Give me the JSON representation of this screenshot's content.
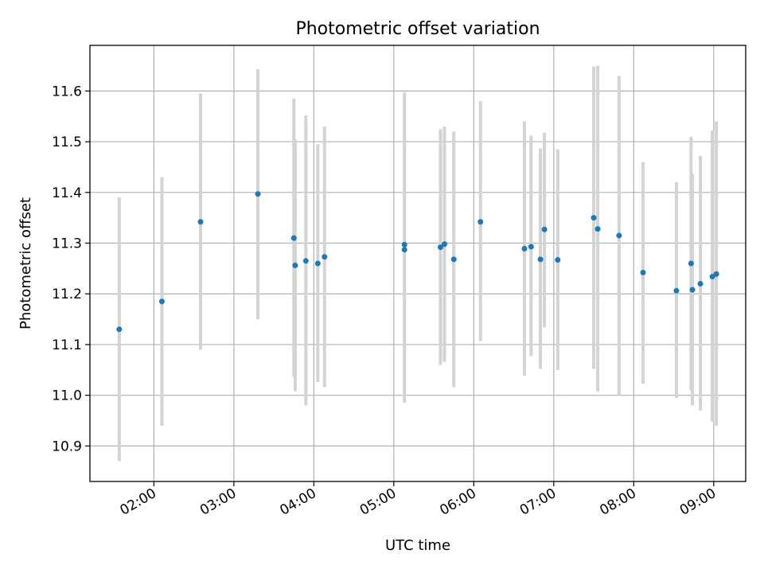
{
  "chart_data": {
    "type": "scatter",
    "title": "Photometric offset variation",
    "xlabel": "UTC time",
    "ylabel": "Photometric offset",
    "x_unit": "time-of-day (UTC, hours)",
    "xlim": [
      "01:12",
      "09:24"
    ],
    "ylim": [
      10.83,
      11.69
    ],
    "xticks": [
      "02:00",
      "03:00",
      "04:00",
      "05:00",
      "06:00",
      "07:00",
      "08:00",
      "09:00"
    ],
    "yticks": [
      "10.9",
      "11.0",
      "11.1",
      "11.2",
      "11.3",
      "11.4",
      "11.5",
      "11.6"
    ],
    "grid": true,
    "errorbar_color": "#d3d3d3",
    "marker_color": "#1f77b4",
    "points": [
      {
        "t": "01:34",
        "y": 11.13,
        "lo": 10.87,
        "hi": 11.39
      },
      {
        "t": "02:06",
        "y": 11.185,
        "lo": 10.94,
        "hi": 11.43
      },
      {
        "t": "02:35",
        "y": 11.342,
        "lo": 11.09,
        "hi": 11.595
      },
      {
        "t": "03:18",
        "y": 11.397,
        "lo": 11.15,
        "hi": 11.643
      },
      {
        "t": "03:45",
        "y": 11.31,
        "lo": 11.037,
        "hi": 11.585
      },
      {
        "t": "03:46",
        "y": 11.256,
        "lo": 11.008,
        "hi": 11.505
      },
      {
        "t": "03:54",
        "y": 11.265,
        "lo": 10.98,
        "hi": 11.552
      },
      {
        "t": "04:03",
        "y": 11.26,
        "lo": 11.026,
        "hi": 11.495
      },
      {
        "t": "04:08",
        "y": 11.273,
        "lo": 11.016,
        "hi": 11.53
      },
      {
        "t": "05:08",
        "y": 11.297,
        "lo": 10.99,
        "hi": 11.597
      },
      {
        "t": "05:08",
        "y": 11.287,
        "lo": 10.985,
        "hi": 11.59
      },
      {
        "t": "05:35",
        "y": 11.292,
        "lo": 11.06,
        "hi": 11.525
      },
      {
        "t": "05:38",
        "y": 11.298,
        "lo": 11.066,
        "hi": 11.53
      },
      {
        "t": "05:45",
        "y": 11.268,
        "lo": 11.016,
        "hi": 11.52
      },
      {
        "t": "06:05",
        "y": 11.342,
        "lo": 11.107,
        "hi": 11.58
      },
      {
        "t": "06:38",
        "y": 11.289,
        "lo": 11.039,
        "hi": 11.54
      },
      {
        "t": "06:43",
        "y": 11.293,
        "lo": 11.077,
        "hi": 11.512
      },
      {
        "t": "06:50",
        "y": 11.268,
        "lo": 11.052,
        "hi": 11.487
      },
      {
        "t": "06:53",
        "y": 11.327,
        "lo": 11.134,
        "hi": 11.518
      },
      {
        "t": "07:03",
        "y": 11.267,
        "lo": 11.05,
        "hi": 11.485
      },
      {
        "t": "07:30",
        "y": 11.35,
        "lo": 11.052,
        "hi": 11.648
      },
      {
        "t": "07:33",
        "y": 11.328,
        "lo": 11.007,
        "hi": 11.65
      },
      {
        "t": "07:49",
        "y": 11.315,
        "lo": 11.0,
        "hi": 11.63
      },
      {
        "t": "08:07",
        "y": 11.242,
        "lo": 11.023,
        "hi": 11.46
      },
      {
        "t": "08:32",
        "y": 11.206,
        "lo": 10.995,
        "hi": 11.42
      },
      {
        "t": "08:43",
        "y": 11.26,
        "lo": 11.01,
        "hi": 11.51
      },
      {
        "t": "08:44",
        "y": 11.208,
        "lo": 10.98,
        "hi": 11.437
      },
      {
        "t": "08:50",
        "y": 11.22,
        "lo": 10.97,
        "hi": 11.472
      },
      {
        "t": "08:59",
        "y": 11.234,
        "lo": 10.948,
        "hi": 11.522
      },
      {
        "t": "09:02",
        "y": 11.239,
        "lo": 10.94,
        "hi": 11.54
      }
    ]
  }
}
